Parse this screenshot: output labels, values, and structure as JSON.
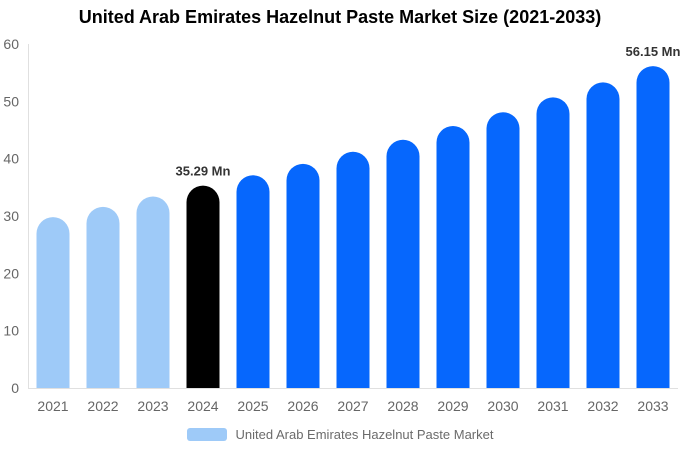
{
  "title": "United Arab Emirates Hazelnut Paste Market Size (2021-2033)",
  "colors": {
    "light_blue": "#9ECAF8",
    "bright_blue": "#0667FD",
    "black_bar": "#000000",
    "axis_text": "#666666",
    "axis_line": "#E0E0E0",
    "data_label_text": "#333333",
    "title_text": "#000000",
    "legend_text": "#6B6B6B",
    "background": "#FFFFFF"
  },
  "legend": {
    "label": "United Arab Emirates Hazelnut Paste Market"
  },
  "chart_data": {
    "type": "bar",
    "title": "United Arab Emirates Hazelnut Paste Market Size (2021-2033)",
    "categories": [
      "2021",
      "2022",
      "2023",
      "2024",
      "2025",
      "2026",
      "2027",
      "2028",
      "2029",
      "2030",
      "2031",
      "2032",
      "2033"
    ],
    "values": [
      29.8,
      31.6,
      33.4,
      35.29,
      37.1,
      39.1,
      41.2,
      43.3,
      45.7,
      48.1,
      50.7,
      53.3,
      56.15
    ],
    "unit": "Mn",
    "bar_colors": [
      "#9ECAF8",
      "#9ECAF8",
      "#9ECAF8",
      "#000000",
      "#0667FD",
      "#0667FD",
      "#0667FD",
      "#0667FD",
      "#0667FD",
      "#0667FD",
      "#0667FD",
      "#0667FD",
      "#0667FD"
    ],
    "data_labels": [
      {
        "index": 3,
        "text": "35.29 Mn"
      },
      {
        "index": 12,
        "text": "56.15 Mn"
      }
    ],
    "xlabel": "",
    "ylabel": "",
    "ylim": [
      0,
      60
    ],
    "yticks": [
      0,
      10,
      20,
      30,
      40,
      50,
      60
    ],
    "grid": false,
    "legend_position": "bottom",
    "legend_entries": [
      "United Arab Emirates Hazelnut Paste Market"
    ]
  }
}
